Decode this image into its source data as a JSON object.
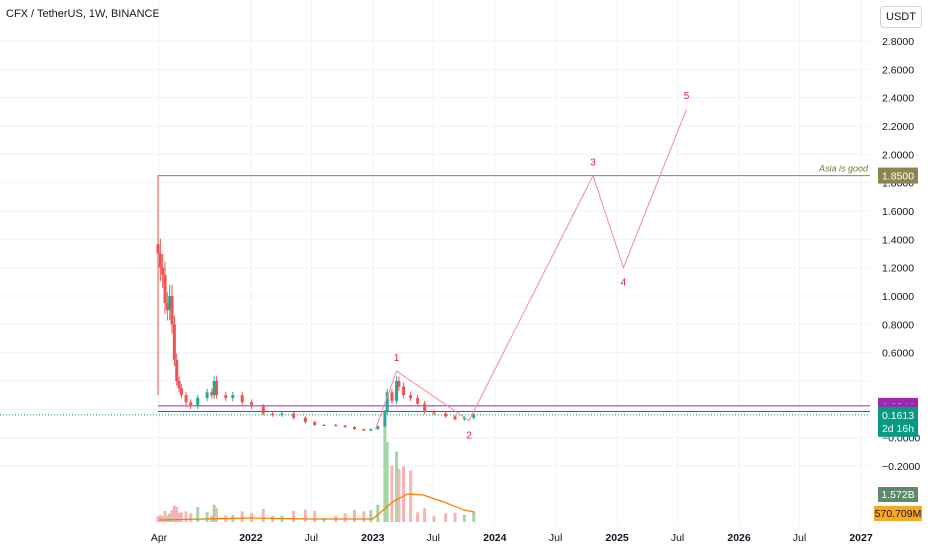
{
  "header": {
    "symbol_title": "CFX / TetherUS, 1W, BINANCE",
    "currency_label": "USDT"
  },
  "colors": {
    "up": "#26a69a",
    "down": "#ef5350",
    "wave": "#f28b9a",
    "resistance": "#8c8451",
    "purple": "#9c27b0",
    "volume_ma": "#f57c00",
    "last_price": "#089981",
    "vol_badge": "#5d8a6b",
    "ma_badge": "#f9a825"
  },
  "chart_data": {
    "type": "candlestick",
    "title": "CFX / TetherUS, 1W, BINANCE",
    "y_axis": {
      "min": -0.3,
      "max": 2.9,
      "ticks": [
        2.8,
        2.6,
        2.4,
        2.2,
        2.0,
        1.8,
        1.6,
        1.4,
        1.2,
        1.0,
        0.8,
        0.6,
        0.4,
        0.2,
        0.0,
        -0.2
      ],
      "tick_labels": [
        "2.8000",
        "2.6000",
        "2.4000",
        "2.2000",
        "2.0000",
        "1.8000",
        "1.6000",
        "1.4000",
        "1.2000",
        "1.0000",
        "0.8000",
        "0.6000",
        "",
        "",
        "−0.0000",
        "−0.2000"
      ]
    },
    "x_axis": {
      "ticks": [
        {
          "label": "Apr",
          "date": "2021-04-01",
          "bold": false
        },
        {
          "label": "2022",
          "date": "2022-01-01",
          "bold": true
        },
        {
          "label": "Jul",
          "date": "2022-07-01",
          "bold": false
        },
        {
          "label": "2023",
          "date": "2023-01-01",
          "bold": true
        },
        {
          "label": "Jul",
          "date": "2023-07-01",
          "bold": false
        },
        {
          "label": "2024",
          "date": "2024-01-01",
          "bold": true
        },
        {
          "label": "Jul",
          "date": "2024-07-01",
          "bold": false
        },
        {
          "label": "2025",
          "date": "2025-01-01",
          "bold": true
        },
        {
          "label": "Jul",
          "date": "2025-07-01",
          "bold": false
        },
        {
          "label": "2026",
          "date": "2026-01-01",
          "bold": true
        },
        {
          "label": "Jul",
          "date": "2026-07-01",
          "bold": false
        },
        {
          "label": "2027",
          "date": "2027-01-01",
          "bold": true
        }
      ]
    },
    "price_series": {
      "interval": "1W",
      "points": [
        {
          "date": "2021-03-29",
          "close": 1.3
        },
        {
          "date": "2021-04-05",
          "close": 1.2
        },
        {
          "date": "2021-04-12",
          "close": 1.15
        },
        {
          "date": "2021-04-19",
          "close": 0.95
        },
        {
          "date": "2021-04-26",
          "close": 0.9
        },
        {
          "date": "2021-05-03",
          "close": 1.0
        },
        {
          "date": "2021-05-10",
          "close": 0.8
        },
        {
          "date": "2021-05-17",
          "close": 0.55
        },
        {
          "date": "2021-05-24",
          "close": 0.4
        },
        {
          "date": "2021-05-31",
          "close": 0.35
        },
        {
          "date": "2021-06-07",
          "close": 0.3
        },
        {
          "date": "2021-06-21",
          "close": 0.25
        },
        {
          "date": "2021-07-05",
          "close": 0.22
        },
        {
          "date": "2021-07-26",
          "close": 0.28
        },
        {
          "date": "2021-08-23",
          "close": 0.32
        },
        {
          "date": "2021-09-06",
          "close": 0.3
        },
        {
          "date": "2021-09-13",
          "close": 0.4
        },
        {
          "date": "2021-09-20",
          "close": 0.3
        },
        {
          "date": "2021-10-18",
          "close": 0.28
        },
        {
          "date": "2021-11-08",
          "close": 0.3
        },
        {
          "date": "2021-12-06",
          "close": 0.25
        },
        {
          "date": "2022-01-03",
          "close": 0.22
        },
        {
          "date": "2022-02-07",
          "close": 0.17
        },
        {
          "date": "2022-03-07",
          "close": 0.16
        },
        {
          "date": "2022-04-04",
          "close": 0.17
        },
        {
          "date": "2022-05-09",
          "close": 0.14
        },
        {
          "date": "2022-06-13",
          "close": 0.11
        },
        {
          "date": "2022-07-11",
          "close": 0.09
        },
        {
          "date": "2022-08-08",
          "close": 0.09
        },
        {
          "date": "2022-09-12",
          "close": 0.085
        },
        {
          "date": "2022-10-10",
          "close": 0.075
        },
        {
          "date": "2022-11-07",
          "close": 0.06
        },
        {
          "date": "2022-12-05",
          "close": 0.05
        },
        {
          "date": "2022-12-26",
          "close": 0.06
        },
        {
          "date": "2023-01-16",
          "close": 0.08
        },
        {
          "date": "2023-02-06",
          "close": 0.18
        },
        {
          "date": "2023-02-13",
          "close": 0.32
        },
        {
          "date": "2023-02-27",
          "close": 0.26
        },
        {
          "date": "2023-03-13",
          "close": 0.4
        },
        {
          "date": "2023-03-20",
          "close": 0.36
        },
        {
          "date": "2023-04-03",
          "close": 0.3
        },
        {
          "date": "2023-04-24",
          "close": 0.28
        },
        {
          "date": "2023-05-15",
          "close": 0.24
        },
        {
          "date": "2023-06-05",
          "close": 0.18
        },
        {
          "date": "2023-07-03",
          "close": 0.17
        },
        {
          "date": "2023-08-07",
          "close": 0.15
        },
        {
          "date": "2023-09-04",
          "close": 0.13
        },
        {
          "date": "2023-10-02",
          "close": 0.14
        },
        {
          "date": "2023-10-30",
          "close": 0.1613
        }
      ]
    },
    "volume_ma_line": [
      {
        "date": "2021-04-01",
        "value": 2
      },
      {
        "date": "2022-01-01",
        "value": 4
      },
      {
        "date": "2022-07-01",
        "value": 3
      },
      {
        "date": "2023-01-01",
        "value": 3
      },
      {
        "date": "2023-03-01",
        "value": 20
      },
      {
        "date": "2023-04-15",
        "value": 28
      },
      {
        "date": "2023-06-01",
        "value": 27
      },
      {
        "date": "2023-08-01",
        "value": 20
      },
      {
        "date": "2023-10-01",
        "value": 12
      },
      {
        "date": "2023-11-01",
        "value": 10
      }
    ],
    "horizontal_levels": [
      {
        "price": 1.85,
        "label": "1.8500",
        "note": "Asia is good",
        "color": "#8c8451"
      },
      {
        "price": 0.2244,
        "label": "0.2244",
        "color": "#9c27b0"
      },
      {
        "price": 0.185,
        "label": "0.1850",
        "color": "#9c27b0"
      }
    ],
    "last_price": {
      "price": 0.1613,
      "label": "0.1613",
      "countdown": "2d 16h"
    },
    "volume_badges": {
      "volume": "1.572B",
      "ma": "570.709M"
    },
    "elliott_wave_projection": [
      {
        "label": "1",
        "date": "2023-03-13",
        "price": 0.47
      },
      {
        "label": "2",
        "date": "2023-10-16",
        "price": 0.12
      },
      {
        "label": "3",
        "date": "2024-10-21",
        "price": 1.85
      },
      {
        "label": "4",
        "date": "2025-01-20",
        "price": 1.2
      },
      {
        "label": "5",
        "date": "2025-07-28",
        "price": 2.32
      }
    ]
  }
}
